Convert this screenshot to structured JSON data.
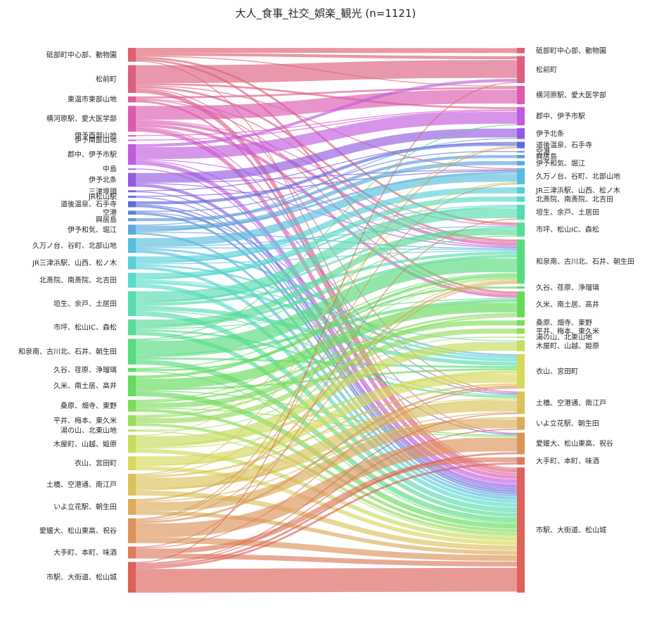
{
  "chart_data": {
    "type": "sankey",
    "title": "大人_食事_社交_娯楽_観光 (n=1121)",
    "nodes": [
      {
        "name": "砥部町中心部、動物園",
        "color": "#df6070"
      },
      {
        "name": "松前町",
        "color": "#dd5f7f"
      },
      {
        "name": "東温市東部山地",
        "color": "#dc5e95"
      },
      {
        "name": "横河原駅、愛大医学部",
        "color": "#dc5bb1"
      },
      {
        "name": "伊予西部山地",
        "color": "#db5ccb"
      },
      {
        "name": "伊予南部山地",
        "color": "#d35cda"
      },
      {
        "name": "郡中、伊予市駅",
        "color": "#c25cde"
      },
      {
        "name": "中島",
        "color": "#b05be0"
      },
      {
        "name": "伊予北条",
        "color": "#935ae0"
      },
      {
        "name": "三津埠頭",
        "color": "#7a5ade"
      },
      {
        "name": "JR松山駅",
        "color": "#6a5fdd"
      },
      {
        "name": "道後温泉、石手寺",
        "color": "#5a6adf"
      },
      {
        "name": "空港",
        "color": "#5c7edc"
      },
      {
        "name": "興居島",
        "color": "#5d96dc"
      },
      {
        "name": "伊予和気、堀江",
        "color": "#5aa9dc"
      },
      {
        "name": "久万ノ台、谷町、北部山地",
        "color": "#57bddc"
      },
      {
        "name": "JR三津浜駅、山西、松ノ木",
        "color": "#56cfd8"
      },
      {
        "name": "北斎院、南斎院、北吉田",
        "color": "#56dbc9"
      },
      {
        "name": "垣生、余戸、土居田",
        "color": "#57dcb0"
      },
      {
        "name": "市坪、松山IC、森松",
        "color": "#57dc97"
      },
      {
        "name": "和泉南、古川北、石井、朝生田",
        "color": "#58dc7e"
      },
      {
        "name": "久谷、荏原、浄瑠璃",
        "color": "#5adc66"
      },
      {
        "name": "久米、南土居、高井",
        "color": "#66dc5a"
      },
      {
        "name": "桑原、畑寺、東野",
        "color": "#7bdc5a"
      },
      {
        "name": "平井、梅本、東久米",
        "color": "#96dc5a"
      },
      {
        "name": "湯の山、北東山地",
        "color": "#afdc5a"
      },
      {
        "name": "木屋町、山越、姫原",
        "color": "#c6dc5a"
      },
      {
        "name": "衣山、宮田町",
        "color": "#d7d85a"
      },
      {
        "name": "土橋、空港通、南江戸",
        "color": "#dcc25a"
      },
      {
        "name": "いよ立花駅、朝生田",
        "color": "#dcab5a"
      },
      {
        "name": "愛媛大、松山東高、祝谷",
        "color": "#dc935a"
      },
      {
        "name": "大手町、本町、味酒",
        "color": "#dc7b5a"
      },
      {
        "name": "市駅、大街道、松山城",
        "color": "#dc625a"
      }
    ],
    "flows": [
      [
        0,
        0,
        5
      ],
      [
        0,
        1,
        3
      ],
      [
        0,
        22,
        2
      ],
      [
        0,
        19,
        2
      ],
      [
        0,
        3,
        1
      ],
      [
        0,
        32,
        1
      ],
      [
        1,
        1,
        18
      ],
      [
        1,
        32,
        4
      ],
      [
        1,
        20,
        2
      ],
      [
        1,
        6,
        2
      ],
      [
        1,
        28,
        1
      ],
      [
        1,
        15,
        1
      ],
      [
        2,
        32,
        2
      ],
      [
        2,
        3,
        2
      ],
      [
        2,
        22,
        1
      ],
      [
        2,
        20,
        1
      ],
      [
        3,
        3,
        14
      ],
      [
        3,
        32,
        4
      ],
      [
        3,
        22,
        3
      ],
      [
        3,
        20,
        3
      ],
      [
        3,
        19,
        1
      ],
      [
        3,
        30,
        1
      ],
      [
        4,
        6,
        1
      ],
      [
        5,
        6,
        1
      ],
      [
        6,
        6,
        12
      ],
      [
        6,
        32,
        4
      ],
      [
        6,
        1,
        3
      ],
      [
        6,
        20,
        1
      ],
      [
        6,
        28,
        1
      ],
      [
        7,
        32,
        1
      ],
      [
        8,
        8,
        9
      ],
      [
        8,
        32,
        3
      ],
      [
        8,
        15,
        1
      ],
      [
        8,
        20,
        1
      ],
      [
        9,
        32,
        1
      ],
      [
        9,
        11,
        1
      ],
      [
        10,
        32,
        1
      ],
      [
        10,
        15,
        1
      ],
      [
        11,
        11,
        3
      ],
      [
        11,
        32,
        2
      ],
      [
        11,
        30,
        1
      ],
      [
        12,
        12,
        1
      ],
      [
        12,
        32,
        2
      ],
      [
        12,
        28,
        1
      ],
      [
        13,
        13,
        3
      ],
      [
        14,
        14,
        4
      ],
      [
        14,
        32,
        2
      ],
      [
        14,
        15,
        2
      ],
      [
        14,
        20,
        1
      ],
      [
        14,
        8,
        1
      ],
      [
        15,
        15,
        8
      ],
      [
        15,
        32,
        3
      ],
      [
        15,
        27,
        2
      ],
      [
        15,
        20,
        1
      ],
      [
        15,
        19,
        1
      ],
      [
        16,
        16,
        6
      ],
      [
        16,
        32,
        3
      ],
      [
        16,
        27,
        2
      ],
      [
        16,
        18,
        1
      ],
      [
        16,
        20,
        1
      ],
      [
        17,
        17,
        5
      ],
      [
        17,
        32,
        4
      ],
      [
        17,
        27,
        3
      ],
      [
        17,
        18,
        2
      ],
      [
        17,
        26,
        1
      ],
      [
        18,
        18,
        10
      ],
      [
        18,
        32,
        5
      ],
      [
        18,
        27,
        4
      ],
      [
        18,
        20,
        3
      ],
      [
        18,
        19,
        2
      ],
      [
        18,
        28,
        1
      ],
      [
        19,
        19,
        6
      ],
      [
        19,
        32,
        4
      ],
      [
        19,
        20,
        3
      ],
      [
        19,
        28,
        2
      ],
      [
        19,
        22,
        1
      ],
      [
        20,
        20,
        14
      ],
      [
        20,
        32,
        5
      ],
      [
        20,
        22,
        3
      ],
      [
        20,
        27,
        2
      ],
      [
        20,
        6,
        1
      ],
      [
        20,
        19,
        1
      ],
      [
        21,
        21,
        2
      ],
      [
        21,
        32,
        1
      ],
      [
        21,
        20,
        1
      ],
      [
        22,
        22,
        10
      ],
      [
        22,
        32,
        5
      ],
      [
        22,
        20,
        3
      ],
      [
        22,
        27,
        2
      ],
      [
        22,
        30,
        1
      ],
      [
        23,
        23,
        5
      ],
      [
        23,
        32,
        3
      ],
      [
        23,
        22,
        2
      ],
      [
        23,
        20,
        1
      ],
      [
        23,
        30,
        1
      ],
      [
        24,
        24,
        5
      ],
      [
        24,
        32,
        3
      ],
      [
        24,
        22,
        2
      ],
      [
        24,
        20,
        1
      ],
      [
        25,
        25,
        1
      ],
      [
        25,
        32,
        1
      ],
      [
        26,
        26,
        9
      ],
      [
        26,
        32,
        4
      ],
      [
        26,
        27,
        3
      ],
      [
        26,
        15,
        1
      ],
      [
        26,
        28,
        1
      ],
      [
        27,
        27,
        9
      ],
      [
        27,
        32,
        4
      ],
      [
        27,
        28,
        1
      ],
      [
        28,
        28,
        11
      ],
      [
        28,
        32,
        5
      ],
      [
        28,
        29,
        2
      ],
      [
        28,
        27,
        2
      ],
      [
        28,
        20,
        1
      ],
      [
        28,
        11,
        1
      ],
      [
        29,
        29,
        9
      ],
      [
        29,
        32,
        4
      ],
      [
        29,
        20,
        2
      ],
      [
        29,
        28,
        1
      ],
      [
        30,
        30,
        14
      ],
      [
        30,
        32,
        6
      ],
      [
        30,
        27,
        2
      ],
      [
        30,
        11,
        1
      ],
      [
        30,
        15,
        1
      ],
      [
        30,
        20,
        1
      ],
      [
        31,
        31,
        5
      ],
      [
        31,
        32,
        5
      ],
      [
        31,
        27,
        1
      ],
      [
        31,
        18,
        1
      ],
      [
        32,
        32,
        24
      ],
      [
        32,
        31,
        2
      ],
      [
        32,
        30,
        2
      ],
      [
        32,
        28,
        1
      ],
      [
        32,
        29,
        1
      ],
      [
        32,
        1,
        1
      ]
    ]
  }
}
